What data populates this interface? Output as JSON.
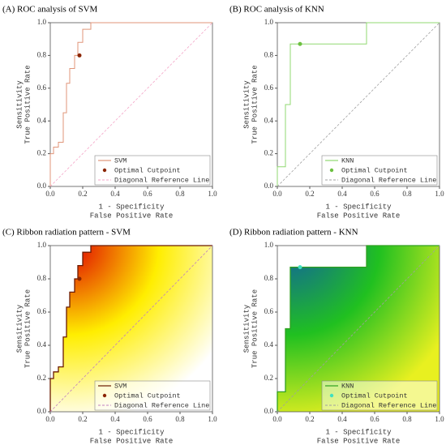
{
  "chart_data": [
    {
      "type": "line",
      "title": "(A) ROC analysis of SVM",
      "xlabel": "1 - Specificity",
      "xlabel2": "False Positive Rate",
      "ylabel": "Sensitivity",
      "ylabel2": "True Positive Rate",
      "xlim": [
        0,
        1
      ],
      "ylim": [
        0,
        1
      ],
      "xticks": [
        {
          "value": 0,
          "label": "0.0"
        },
        0.2,
        0.4,
        0.6,
        0.8,
        {
          "value": 1,
          "label": "1.0"
        }
      ],
      "yticks": [
        {
          "value": 0,
          "label": "0.0"
        },
        0.2,
        0.4,
        0.6,
        0.8,
        {
          "value": 1,
          "label": "1.0"
        }
      ],
      "series": [
        {
          "name": "SVM",
          "color": "#e0967a",
          "x": [
            0,
            0,
            0.02,
            0.02,
            0.05,
            0.05,
            0.08,
            0.08,
            0.1,
            0.1,
            0.12,
            0.12,
            0.15,
            0.15,
            0.17,
            0.17,
            0.2,
            0.2,
            0.25,
            0.25,
            1
          ],
          "values": [
            0,
            0.2,
            0.2,
            0.24,
            0.24,
            0.27,
            0.27,
            0.45,
            0.45,
            0.63,
            0.63,
            0.72,
            0.72,
            0.8,
            0.8,
            0.88,
            0.88,
            0.96,
            0.96,
            1,
            1
          ]
        },
        {
          "name": "Optimal Cutpoint",
          "color": "#8b2500",
          "x": [
            0.18
          ],
          "values": [
            0.8
          ]
        },
        {
          "name": "Diagonal Reference Line",
          "color": "#f4a6c8",
          "x": [
            0,
            1
          ],
          "values": [
            0,
            1
          ]
        }
      ]
    },
    {
      "type": "line",
      "title": "(B) ROC analysis of KNN",
      "xlabel": "1 - Specificity",
      "xlabel2": "False Positive Rate",
      "ylabel": "Sensitivity",
      "ylabel2": "True Positive Rate",
      "xlim": [
        0,
        1
      ],
      "ylim": [
        0,
        1
      ],
      "xticks": [
        {
          "value": 0,
          "label": "0.0"
        },
        0.2,
        0.4,
        0.6,
        0.8,
        {
          "value": 1,
          "label": "1.0"
        }
      ],
      "yticks": [
        {
          "value": 0,
          "label": "0.0"
        },
        0.2,
        0.4,
        0.6,
        0.8,
        {
          "value": 1,
          "label": "1.0"
        }
      ],
      "series": [
        {
          "name": "KNN",
          "color": "#90d870",
          "x": [
            0,
            0,
            0.05,
            0.05,
            0.08,
            0.08,
            0.55,
            0.55,
            1
          ],
          "values": [
            0,
            0.12,
            0.12,
            0.5,
            0.5,
            0.87,
            0.87,
            1,
            1
          ]
        },
        {
          "name": "Optimal Cutpoint",
          "color": "#6cc040",
          "x": [
            0.14
          ],
          "values": [
            0.87
          ]
        },
        {
          "name": "Diagonal Reference Line",
          "color": "#a0a0a0",
          "x": [
            0,
            1
          ],
          "values": [
            0,
            1
          ]
        }
      ]
    },
    {
      "type": "ribbon",
      "title": "(C) Ribbon radiation pattern - SVM",
      "xlabel": "1 - Specificity",
      "xlabel2": "False Positive Rate",
      "ylabel": "Sensitivity",
      "ylabel2": "True Positive Rate",
      "xlim": [
        0,
        1
      ],
      "ylim": [
        0,
        1
      ],
      "gradient": [
        "#e00000",
        "#ffee00",
        "#ffffff"
      ],
      "xticks": [
        {
          "value": 0,
          "label": "0.0"
        },
        0.2,
        0.4,
        0.6,
        0.8,
        {
          "value": 1,
          "label": "1.0"
        }
      ],
      "yticks": [
        {
          "value": 0,
          "label": "0.0"
        },
        0.2,
        0.4,
        0.6,
        0.8,
        {
          "value": 1,
          "label": "1.0"
        }
      ],
      "series": [
        {
          "name": "SVM",
          "color": "#6b1a00",
          "x": [
            0,
            0,
            0.02,
            0.02,
            0.05,
            0.05,
            0.08,
            0.08,
            0.1,
            0.1,
            0.12,
            0.12,
            0.15,
            0.15,
            0.17,
            0.17,
            0.2,
            0.2,
            0.25,
            0.25,
            1
          ],
          "values": [
            0,
            0.2,
            0.2,
            0.24,
            0.24,
            0.27,
            0.27,
            0.45,
            0.45,
            0.63,
            0.63,
            0.72,
            0.72,
            0.8,
            0.8,
            0.88,
            0.88,
            0.96,
            0.96,
            1,
            1
          ]
        },
        {
          "name": "Optimal Cutpoint",
          "color": "#8b2500",
          "x": [
            0.18
          ],
          "values": [
            0.8
          ]
        },
        {
          "name": "Diagonal Reference Line",
          "color": "#c080c0",
          "x": [
            0,
            1
          ],
          "values": [
            0,
            1
          ]
        }
      ]
    },
    {
      "type": "ribbon",
      "title": "(D) Ribbon radiation pattern - KNN",
      "xlabel": "1 - Specificity",
      "xlabel2": "False Positive Rate",
      "ylabel": "Sensitivity",
      "ylabel2": "True Positive Rate",
      "xlim": [
        0,
        1
      ],
      "ylim": [
        0,
        1
      ],
      "gradient": [
        "#1060a0",
        "#20c020",
        "#e8f020"
      ],
      "xticks": [
        {
          "value": 0,
          "label": "0.0"
        },
        0.2,
        0.4,
        0.6,
        0.8,
        {
          "value": 1,
          "label": "1.0"
        }
      ],
      "yticks": [
        {
          "value": 0,
          "label": "0.0"
        },
        0.2,
        0.4,
        0.6,
        0.8,
        {
          "value": 1,
          "label": "1.0"
        }
      ],
      "series": [
        {
          "name": "KNN",
          "color": "#30a020",
          "x": [
            0,
            0,
            0.05,
            0.05,
            0.08,
            0.08,
            0.55,
            0.55,
            1
          ],
          "values": [
            0,
            0.12,
            0.12,
            0.5,
            0.5,
            0.87,
            0.87,
            1,
            1
          ]
        },
        {
          "name": "Optimal Cutpoint",
          "color": "#40e0c0",
          "x": [
            0.14
          ],
          "values": [
            0.87
          ]
        },
        {
          "name": "Diagonal Reference Line",
          "color": "#a0a0a0",
          "x": [
            0,
            1
          ],
          "values": [
            0,
            1
          ]
        }
      ]
    }
  ]
}
